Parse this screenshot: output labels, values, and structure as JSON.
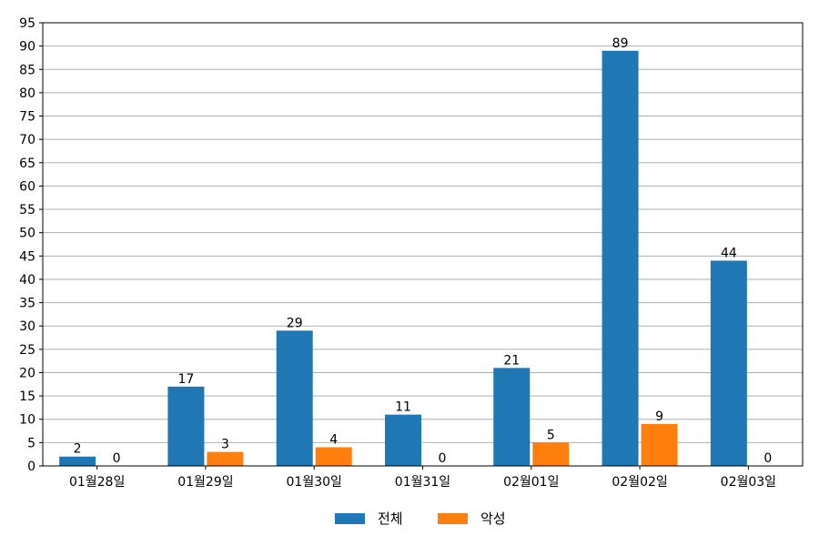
{
  "chart_data": {
    "type": "bar",
    "categories": [
      "01월28일",
      "01월29일",
      "01월30일",
      "01월31일",
      "02월01일",
      "02월02일",
      "02월03일"
    ],
    "series": [
      {
        "name": "전체",
        "values": [
          2,
          17,
          29,
          11,
          21,
          89,
          44
        ],
        "color": "#1f77b4"
      },
      {
        "name": "악성",
        "values": [
          0,
          3,
          4,
          0,
          5,
          9,
          0
        ],
        "color": "#ff7f0e"
      }
    ],
    "ylim": [
      0,
      95
    ],
    "ytick_step": 5,
    "grid": "horizontal",
    "legend_position": "bottom-center",
    "data_labels": true
  }
}
